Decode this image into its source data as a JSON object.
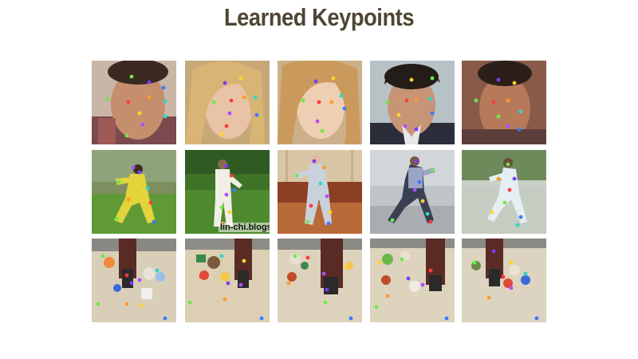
{
  "title": "Learned Keypoints",
  "rows": [
    {
      "category": "faces",
      "tiles": [
        {
          "tone": "tan"
        },
        {
          "tone": "blonde"
        },
        {
          "tone": "blonde-light"
        },
        {
          "tone": "dark-hair"
        },
        {
          "tone": "warm-brown"
        }
      ]
    },
    {
      "category": "tai-chi",
      "tiles": [
        {
          "tone": "yellow-suit"
        },
        {
          "tone": "white-suit",
          "watermark": "lin-chi.blogs"
        },
        {
          "tone": "indoor-wood"
        },
        {
          "tone": "street"
        },
        {
          "tone": "park-light"
        }
      ]
    },
    {
      "category": "robot-bin",
      "tiles": [
        {
          "tone": "bin-1"
        },
        {
          "tone": "bin-2"
        },
        {
          "tone": "bin-3"
        },
        {
          "tone": "bin-4"
        },
        {
          "tone": "bin-5"
        }
      ]
    }
  ],
  "keypoint_colors": [
    "#7a3cff",
    "#b14dff",
    "#ff3b3b",
    "#ff9a2a",
    "#ffd52a",
    "#6ee84a",
    "#2ed8c8",
    "#3a7cff"
  ]
}
